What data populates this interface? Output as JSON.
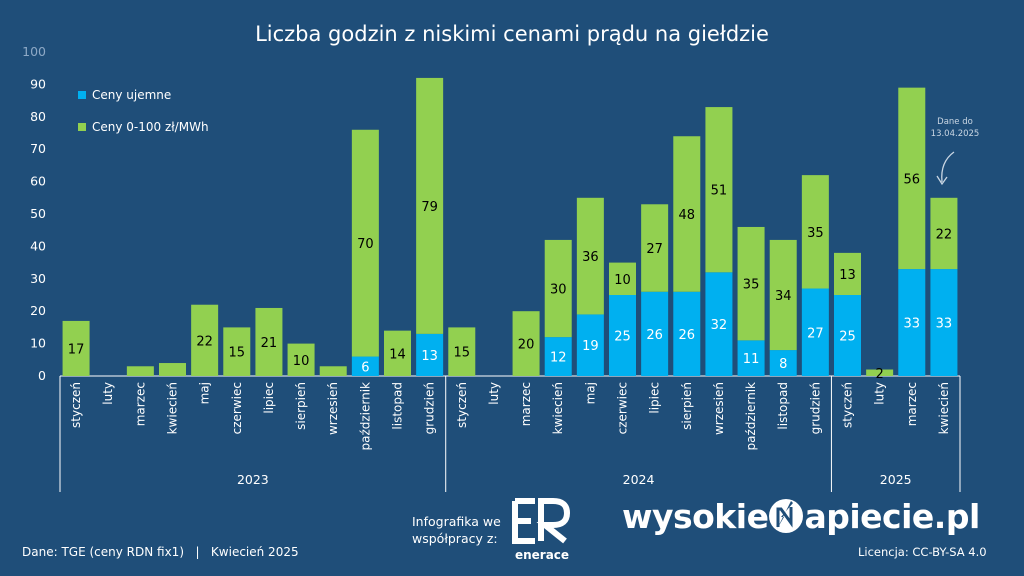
{
  "title": "Liczba godzin z niskimi cenami prądu na giełdzie",
  "legend": [
    {
      "label": "Ceny ujemne",
      "color": "#00b0f0"
    },
    {
      "label": "Ceny 0-100 zł/MWh",
      "color": "#92d050"
    }
  ],
  "note": [
    "Dane do",
    "13.04.2025"
  ],
  "footer": {
    "source": "Dane: TGE (ceny RDN fix1)   |   Kwiecień 2025",
    "infographic_line1": "Infografika we",
    "infographic_line2": "współpracy z:",
    "partner_name": "enerace",
    "brand_left": "wysokie",
    "brand_right": "apiecie.pl",
    "license": "Licencja: CC-BY-SA 4.0"
  },
  "chart_data": {
    "type": "bar",
    "stacked": true,
    "ylim": [
      0,
      100
    ],
    "yticks": [
      0,
      10,
      20,
      30,
      40,
      50,
      60,
      70,
      80,
      90,
      100
    ],
    "grid": false,
    "legend_position": "top-left",
    "groups": [
      {
        "label": "2023",
        "count": 12
      },
      {
        "label": "2024",
        "count": 12
      },
      {
        "label": "2025",
        "count": 4
      }
    ],
    "categories": [
      "styczeń",
      "luty",
      "marzec",
      "kwiecień",
      "maj",
      "czerwiec",
      "lipiec",
      "sierpień",
      "wrzesień",
      "październik",
      "listopad",
      "grudzień",
      "styczeń",
      "luty",
      "marzec",
      "kwiecień",
      "maj",
      "czerwiec",
      "lipiec",
      "sierpień",
      "wrzesień",
      "październik",
      "listopad",
      "grudzień",
      "styczeń",
      "luty",
      "marzec",
      "kwiecień"
    ],
    "series": [
      {
        "name": "Ceny ujemne",
        "color": "#00b0f0",
        "values": [
          0,
          0,
          0,
          0,
          0,
          0,
          0,
          0,
          0,
          6,
          0,
          13,
          0,
          0,
          0,
          12,
          19,
          25,
          26,
          26,
          32,
          11,
          8,
          27,
          25,
          0,
          33,
          33
        ],
        "labels": [
          null,
          null,
          null,
          null,
          null,
          null,
          null,
          null,
          null,
          6,
          null,
          13,
          null,
          null,
          null,
          12,
          19,
          25,
          26,
          26,
          32,
          11,
          8,
          27,
          25,
          null,
          33,
          33
        ]
      },
      {
        "name": "Ceny 0-100 zł/MWh",
        "color": "#92d050",
        "values": [
          17,
          0,
          3,
          4,
          22,
          15,
          21,
          10,
          3,
          70,
          14,
          79,
          15,
          0,
          20,
          30,
          36,
          10,
          27,
          48,
          51,
          35,
          34,
          35,
          13,
          2,
          56,
          22
        ],
        "labels": [
          17,
          null,
          null,
          null,
          22,
          15,
          21,
          10,
          null,
          70,
          14,
          79,
          15,
          null,
          20,
          30,
          36,
          10,
          27,
          48,
          51,
          35,
          34,
          35,
          13,
          2,
          56,
          22
        ]
      }
    ]
  }
}
